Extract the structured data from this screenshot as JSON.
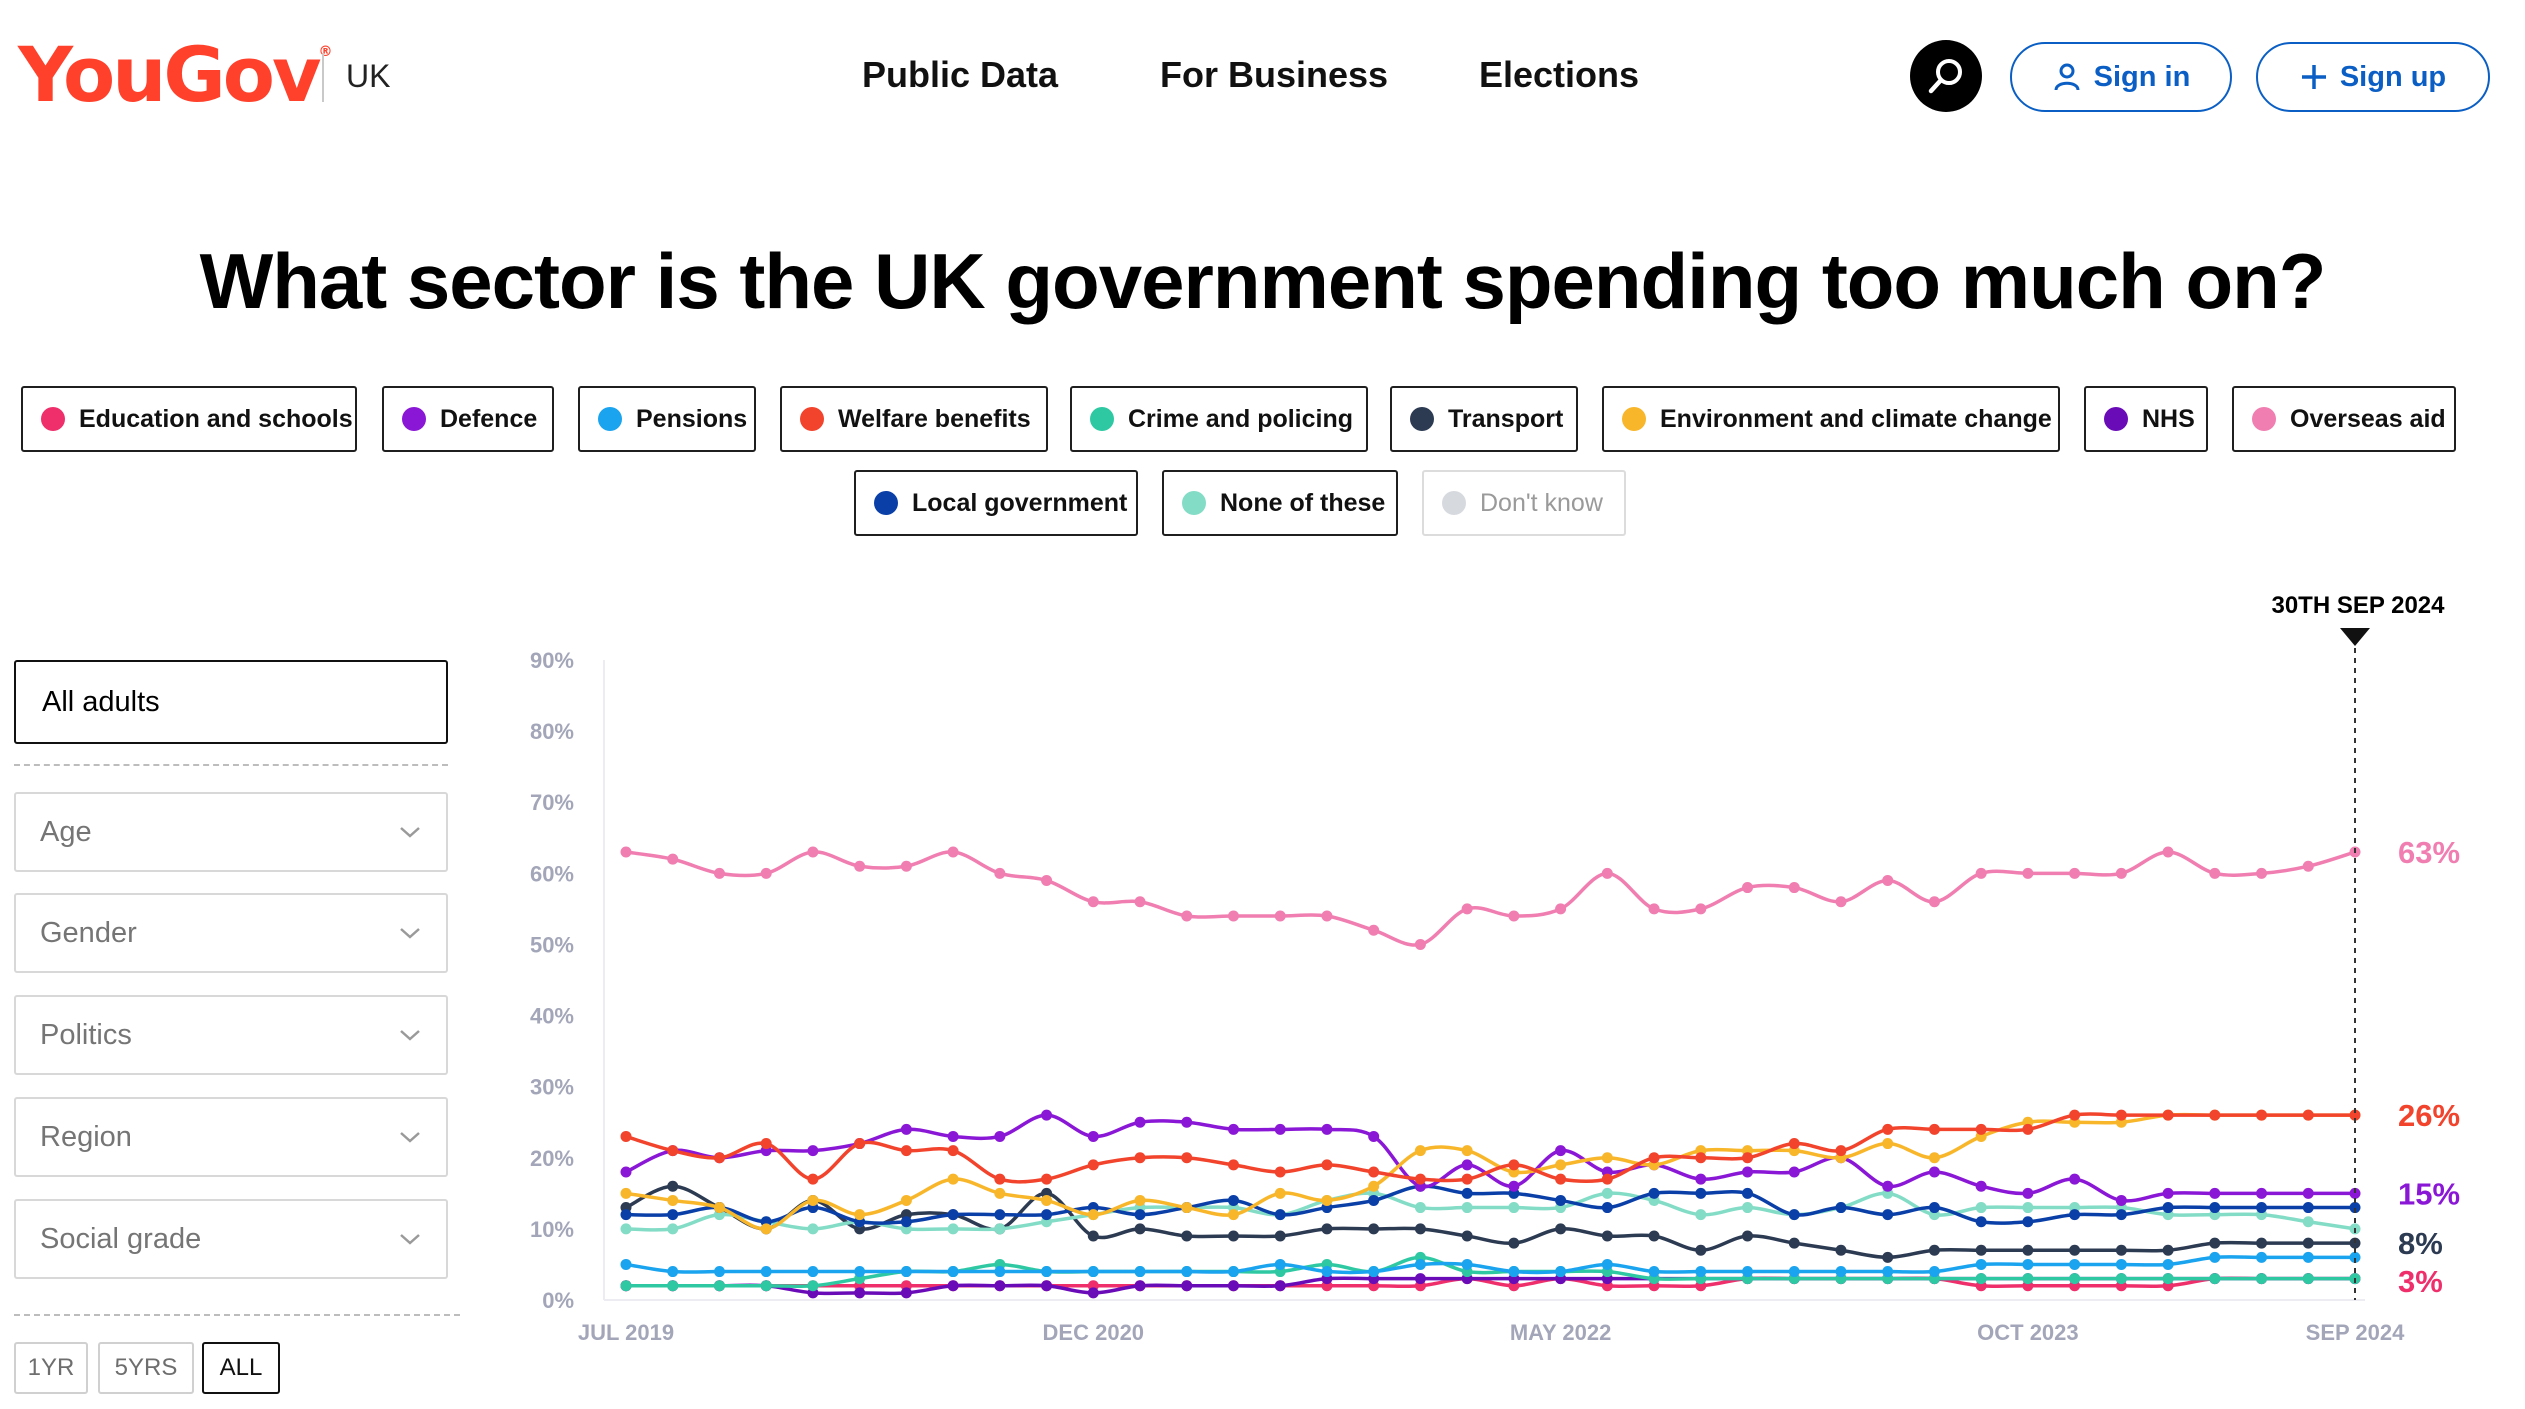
{
  "header": {
    "logo": "YouGov",
    "region": "UK",
    "nav": [
      "Public Data",
      "For Business",
      "Elections"
    ],
    "sign_in": "Sign in",
    "sign_up": "Sign up",
    "accent": "#0b5fc4"
  },
  "title": "What sector is the UK government spending too much on?",
  "legend": [
    {
      "label": "Education and schools",
      "color": "#ee2f6c",
      "active": true
    },
    {
      "label": "Defence",
      "color": "#8a17d6",
      "active": true
    },
    {
      "label": "Pensions",
      "color": "#1aa3ee",
      "active": true
    },
    {
      "label": "Welfare benefits",
      "color": "#f2432c",
      "active": true
    },
    {
      "label": "Crime and policing",
      "color": "#2ec9a2",
      "active": true
    },
    {
      "label": "Transport",
      "color": "#2c3a52",
      "active": true
    },
    {
      "label": "Environment and climate change",
      "color": "#f8b62b",
      "active": true
    },
    {
      "label": "NHS",
      "color": "#6a0bb8",
      "active": true
    },
    {
      "label": "Overseas aid",
      "color": "#f07eb0",
      "active": true
    },
    {
      "label": "Local government",
      "color": "#0a3fa8",
      "active": true
    },
    {
      "label": "None of these",
      "color": "#83dcc6",
      "active": true
    },
    {
      "label": "Don't know",
      "color": "#d6d9de",
      "active": false
    }
  ],
  "filters": {
    "selected": "All adults",
    "dropdowns": [
      "Age",
      "Gender",
      "Politics",
      "Region",
      "Social grade"
    ],
    "ranges": [
      "1YR",
      "5YRS",
      "ALL"
    ],
    "active_range": "ALL"
  },
  "chart_data": {
    "type": "line",
    "ylim": [
      0,
      90
    ],
    "y_ticks": [
      "0%",
      "10%",
      "20%",
      "30%",
      "40%",
      "50%",
      "60%",
      "70%",
      "80%",
      "90%"
    ],
    "x_ticks": [
      {
        "label": "JUL 2019",
        "index": 0
      },
      {
        "label": "DEC 2020",
        "index": 10
      },
      {
        "label": "MAY 2022",
        "index": 20
      },
      {
        "label": "OCT 2023",
        "index": 30
      },
      {
        "label": "SEP 2024",
        "index": 37
      }
    ],
    "marker_label": "30TH SEP 2024",
    "grid": false,
    "series": [
      {
        "name": "Overseas aid",
        "color": "#f07eb0",
        "end_label": "63%",
        "values": [
          63,
          62,
          60,
          60,
          63,
          61,
          61,
          63,
          60,
          59,
          56,
          56,
          54,
          54,
          54,
          54,
          52,
          50,
          55,
          54,
          55,
          60,
          55,
          55,
          58,
          58,
          56,
          59,
          56,
          60,
          60,
          60,
          60,
          63,
          60,
          60,
          61,
          63
        ]
      },
      {
        "name": "Welfare benefits",
        "color": "#f2432c",
        "end_label": "26%",
        "values": [
          23,
          21,
          20,
          22,
          17,
          22,
          21,
          21,
          17,
          17,
          19,
          20,
          20,
          19,
          18,
          19,
          18,
          17,
          17,
          19,
          17,
          17,
          20,
          20,
          20,
          22,
          21,
          24,
          24,
          24,
          24,
          26,
          26,
          26,
          26,
          26,
          26,
          26
        ]
      },
      {
        "name": "Environment and climate change",
        "color": "#f8b62b",
        "values": [
          15,
          14,
          13,
          10,
          14,
          12,
          14,
          17,
          15,
          14,
          12,
          14,
          13,
          12,
          15,
          14,
          16,
          21,
          21,
          18,
          19,
          20,
          19,
          21,
          21,
          21,
          20,
          22,
          20,
          23,
          25,
          25,
          25,
          26,
          26,
          26,
          26,
          26
        ]
      },
      {
        "name": "Defence",
        "color": "#8a17d6",
        "end_label": "15%",
        "values": [
          18,
          21,
          20,
          21,
          21,
          22,
          24,
          23,
          23,
          26,
          23,
          25,
          25,
          24,
          24,
          24,
          23,
          16,
          19,
          16,
          21,
          18,
          19,
          17,
          18,
          18,
          20,
          16,
          18,
          16,
          15,
          17,
          14,
          15,
          15,
          15,
          15,
          15
        ]
      },
      {
        "name": "Local government",
        "color": "#0a3fa8",
        "values": [
          12,
          12,
          13,
          11,
          13,
          11,
          11,
          12,
          12,
          12,
          13,
          12,
          13,
          14,
          12,
          13,
          14,
          16,
          15,
          15,
          14,
          13,
          15,
          15,
          15,
          12,
          13,
          12,
          13,
          11,
          11,
          12,
          12,
          13,
          13,
          13,
          13,
          13
        ]
      },
      {
        "name": "None of these",
        "color": "#83dcc6",
        "values": [
          10,
          10,
          12,
          11,
          10,
          11,
          10,
          10,
          10,
          11,
          12,
          13,
          13,
          13,
          12,
          14,
          15,
          13,
          13,
          13,
          13,
          15,
          14,
          12,
          13,
          12,
          13,
          15,
          12,
          13,
          13,
          13,
          13,
          12,
          12,
          12,
          11,
          10
        ]
      },
      {
        "name": "Transport",
        "color": "#2c3a52",
        "end_label": "8%",
        "values": [
          13,
          16,
          13,
          10,
          14,
          10,
          12,
          12,
          10,
          15,
          9,
          10,
          9,
          9,
          9,
          10,
          10,
          10,
          9,
          8,
          10,
          9,
          9,
          7,
          9,
          8,
          7,
          6,
          7,
          7,
          7,
          7,
          7,
          7,
          8,
          8,
          8,
          8
        ]
      },
      {
        "name": "Pensions",
        "color": "#1aa3ee",
        "values": [
          5,
          4,
          4,
          4,
          4,
          4,
          4,
          4,
          4,
          4,
          4,
          4,
          4,
          4,
          5,
          4,
          4,
          5,
          5,
          4,
          4,
          5,
          4,
          4,
          4,
          4,
          4,
          4,
          4,
          5,
          5,
          5,
          5,
          5,
          6,
          6,
          6,
          6
        ]
      },
      {
        "name": "Crime and policing",
        "color": "#2ec9a2",
        "values": [
          2,
          2,
          2,
          2,
          2,
          3,
          4,
          4,
          5,
          4,
          4,
          4,
          4,
          4,
          4,
          5,
          4,
          6,
          4,
          4,
          4,
          4,
          3,
          3,
          3,
          3,
          3,
          3,
          3,
          3,
          3,
          3,
          3,
          3,
          3,
          3,
          3,
          3
        ]
      },
      {
        "name": "NHS",
        "color": "#6a0bb8",
        "values": [
          2,
          2,
          2,
          2,
          1,
          1,
          1,
          2,
          2,
          2,
          1,
          2,
          2,
          2,
          2,
          3,
          3,
          3,
          3,
          3,
          3,
          3,
          3,
          3,
          3,
          3,
          3,
          3,
          3,
          3,
          3,
          3,
          3,
          3,
          3,
          3,
          3,
          3
        ]
      },
      {
        "name": "Education and schools",
        "color": "#ee2f6c",
        "end_label": "3%",
        "values": [
          2,
          2,
          2,
          2,
          2,
          2,
          2,
          2,
          2,
          2,
          2,
          2,
          2,
          2,
          2,
          2,
          2,
          2,
          3,
          2,
          3,
          2,
          2,
          2,
          3,
          3,
          3,
          3,
          3,
          2,
          2,
          2,
          2,
          2,
          3,
          3,
          3,
          3
        ]
      }
    ]
  }
}
